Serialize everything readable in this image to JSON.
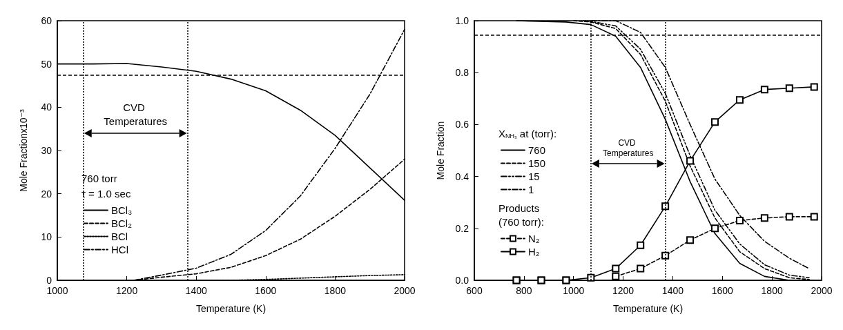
{
  "chart_data": [
    {
      "type": "line",
      "xlabel": "Temperature (K)",
      "ylabel": "Mole Fractionx10⁻³",
      "xlim": [
        1000,
        2000
      ],
      "xticks": [
        1000,
        1200,
        1400,
        1600,
        1800,
        2000
      ],
      "ylim": [
        0,
        60
      ],
      "yticks": [
        0,
        10,
        20,
        30,
        40,
        50,
        60
      ],
      "grid": false,
      "legend": "left",
      "marker": "none",
      "annotations": [
        "760 torr",
        "τ = 1.0 sec",
        "CVD Temperatures"
      ],
      "ref_lines": [
        {
          "axis": "x",
          "value": 1075,
          "line_style": "dotted"
        },
        {
          "axis": "x",
          "value": 1375,
          "line_style": "dotted"
        },
        {
          "axis": "y",
          "value": 47.5,
          "line_style": "dashed"
        }
      ],
      "series": [
        {
          "name": "BCl₃",
          "color": "#000000",
          "line_style": "solid",
          "x": [
            1000,
            1100,
            1200,
            1300,
            1400,
            1500,
            1600,
            1700,
            1800,
            1900,
            2000
          ],
          "values": [
            50,
            50,
            50.1,
            49.3,
            48.3,
            46.5,
            43.8,
            39.3,
            33.5,
            26,
            18.5
          ]
        },
        {
          "name": "BCl₂",
          "color": "#000000",
          "line_style": "dashed",
          "x": [
            1220,
            1300,
            1400,
            1500,
            1600,
            1700,
            1800,
            1900,
            2000
          ],
          "values": [
            0,
            0.7,
            1.5,
            3,
            5.7,
            9.5,
            14.8,
            21,
            28
          ]
        },
        {
          "name": "BCl",
          "color": "#000000",
          "line_style": "dotted",
          "x": [
            1300,
            1500,
            1600,
            1700,
            1800,
            1900,
            2000
          ],
          "values": [
            0,
            0,
            0.2,
            0.5,
            0.8,
            1.1,
            1.3
          ]
        },
        {
          "name": "HCl",
          "color": "#000000",
          "line_style": "dashdot",
          "x": [
            1220,
            1300,
            1400,
            1500,
            1600,
            1700,
            1800,
            1900,
            2000
          ],
          "values": [
            0,
            1.2,
            2.8,
            6,
            11.5,
            19.5,
            30.5,
            43,
            58
          ]
        }
      ]
    },
    {
      "type": "line",
      "xlabel": "Temperature (K)",
      "ylabel": "Mole Fraction",
      "legend_title": "X$_{NH₃}$ at (torr):",
      "xlim": [
        600,
        2000
      ],
      "xticks": [
        600,
        800,
        1000,
        1200,
        1400,
        1600,
        1800,
        2000
      ],
      "ylim": [
        0,
        1
      ],
      "yticks": [
        {
          "value": 0,
          "label": "0.0"
        },
        {
          "value": 0.2,
          "label": "0.2"
        },
        {
          "value": 0.4,
          "label": "0.4"
        },
        {
          "value": 0.6,
          "label": "0.6"
        },
        {
          "value": 0.8,
          "label": "0.8"
        },
        {
          "value": 1,
          "label": "1.0"
        }
      ],
      "grid": false,
      "legend": "left",
      "annotations": [
        "Products (760 torr):",
        "CVD Temperatures"
      ],
      "ref_lines": [
        {
          "axis": "x",
          "value": 1070,
          "line_style": "dotted"
        },
        {
          "axis": "x",
          "value": 1370,
          "line_style": "dotted"
        },
        {
          "axis": "y",
          "value": 0.945,
          "line_style": "dashed"
        }
      ],
      "series": [
        {
          "name": "760",
          "color": "#000000",
          "line_style": "solid",
          "marker": "none",
          "x": [
            770,
            970,
            1070,
            1170,
            1270,
            1370,
            1470,
            1570,
            1670,
            1770,
            1870,
            1970
          ],
          "values": [
            1,
            0.995,
            0.985,
            0.94,
            0.82,
            0.62,
            0.38,
            0.18,
            0.065,
            0.015,
            0,
            0
          ]
        },
        {
          "name": "150",
          "color": "#000000",
          "line_style": "dashed",
          "marker": "none",
          "x": [
            1000,
            1070,
            1170,
            1270,
            1370,
            1470,
            1570,
            1670,
            1770,
            1870,
            1950
          ],
          "values": [
            1,
            0.995,
            0.97,
            0.87,
            0.69,
            0.44,
            0.24,
            0.11,
            0.045,
            0.01,
            0.003
          ]
        },
        {
          "name": "15",
          "color": "#000000",
          "line_style": "dashdotdot",
          "marker": "none",
          "x": [
            1040,
            1070,
            1170,
            1270,
            1370,
            1470,
            1570,
            1670,
            1770,
            1870,
            1950
          ],
          "values": [
            1,
            0.997,
            0.98,
            0.89,
            0.72,
            0.48,
            0.27,
            0.14,
            0.06,
            0.02,
            0.01
          ]
        },
        {
          "name": "1",
          "color": "#000000",
          "line_style": "dashdot",
          "marker": "none",
          "x": [
            1070,
            1170,
            1270,
            1370,
            1470,
            1570,
            1670,
            1770,
            1870,
            1950
          ],
          "values": [
            1,
            1,
            0.955,
            0.82,
            0.6,
            0.39,
            0.25,
            0.15,
            0.085,
            0.045
          ]
        },
        {
          "name": "N₂",
          "color": "#000000",
          "line_style": "dashed",
          "marker": "square",
          "x": [
            770,
            870,
            970,
            1070,
            1170,
            1270,
            1370,
            1470,
            1570,
            1670,
            1770,
            1870,
            1970
          ],
          "values": [
            0,
            0,
            0,
            null,
            0.015,
            0.045,
            0.095,
            0.155,
            0.2,
            0.23,
            0.24,
            0.245,
            0.245
          ]
        },
        {
          "name": "H₂",
          "color": "#000000",
          "line_style": "solid",
          "marker": "square",
          "x": [
            770,
            870,
            970,
            1070,
            1170,
            1270,
            1370,
            1470,
            1570,
            1670,
            1770,
            1870,
            1970
          ],
          "values": [
            0,
            0,
            0,
            0.01,
            0.045,
            0.135,
            0.285,
            0.46,
            0.61,
            0.695,
            0.735,
            0.74,
            0.745
          ]
        }
      ]
    }
  ]
}
